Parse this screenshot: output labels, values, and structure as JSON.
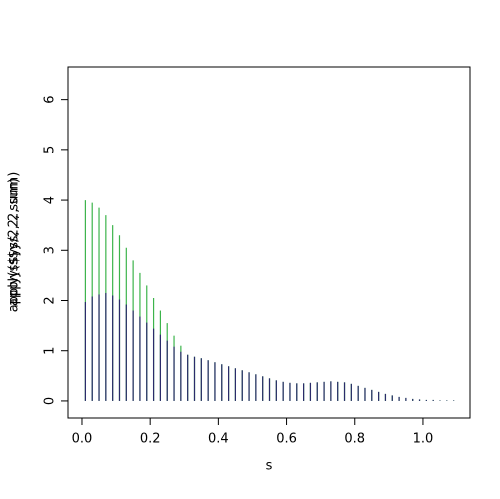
{
  "chart_data": {
    "type": "spike",
    "x_label": "s",
    "y_labels": [
      "apply(s$ys, 2, sum)",
      "apply(s$ys/2, 2, sum)"
    ],
    "x": [
      0.01,
      0.03,
      0.05,
      0.07,
      0.09,
      0.11,
      0.13,
      0.15,
      0.17,
      0.19,
      0.21,
      0.23,
      0.25,
      0.27,
      0.29,
      0.31,
      0.33,
      0.35,
      0.37,
      0.39,
      0.41,
      0.43,
      0.45,
      0.47,
      0.49,
      0.51,
      0.53,
      0.55,
      0.57,
      0.59,
      0.61,
      0.63,
      0.65,
      0.67,
      0.69,
      0.71,
      0.73,
      0.75,
      0.77,
      0.79,
      0.81,
      0.83,
      0.85,
      0.87,
      0.89,
      0.91,
      0.93,
      0.95,
      0.97,
      0.99,
      1.01,
      1.03,
      1.05,
      1.07,
      1.09
    ],
    "series": [
      {
        "color": "#3cb44b",
        "values": [
          4.0,
          3.95,
          3.85,
          3.7,
          3.5,
          3.3,
          3.05,
          2.8,
          2.55,
          2.3,
          2.05,
          1.8,
          1.55,
          1.3,
          1.1,
          0.92,
          0.88,
          0.85,
          0.81,
          0.77,
          0.73,
          0.69,
          0.65,
          0.61,
          0.57,
          0.53,
          0.49,
          0.45,
          0.41,
          0.38,
          0.36,
          0.35,
          0.35,
          0.36,
          0.37,
          0.38,
          0.39,
          0.38,
          0.37,
          0.34,
          0.3,
          0.26,
          0.22,
          0.18,
          0.14,
          0.11,
          0.08,
          0.06,
          0.04,
          0.03,
          0.02,
          0.02,
          0.01,
          0.01,
          0.01
        ]
      },
      {
        "color": "#2b2b6b",
        "values": [
          1.97,
          2.08,
          2.12,
          2.15,
          2.1,
          2.02,
          1.92,
          1.8,
          1.68,
          1.56,
          1.44,
          1.32,
          1.2,
          1.08,
          0.98,
          0.92,
          0.88,
          0.85,
          0.81,
          0.77,
          0.73,
          0.69,
          0.65,
          0.61,
          0.57,
          0.53,
          0.49,
          0.45,
          0.41,
          0.38,
          0.36,
          0.35,
          0.35,
          0.36,
          0.37,
          0.38,
          0.39,
          0.38,
          0.37,
          0.34,
          0.3,
          0.26,
          0.22,
          0.18,
          0.14,
          0.11,
          0.08,
          0.06,
          0.04,
          0.03,
          0.02,
          0.02,
          0.01,
          0.01,
          0.01
        ]
      }
    ],
    "xlim": [
      -0.041,
      1.138
    ],
    "ylim": [
      -0.34,
      6.65
    ],
    "xticks": [
      {
        "value": 0,
        "label": "0.0"
      },
      0.2,
      0.4,
      0.6,
      0.8,
      {
        "value": 1,
        "label": "1.0"
      }
    ],
    "yticks": [
      0,
      1,
      2,
      3,
      4,
      5,
      6
    ]
  }
}
